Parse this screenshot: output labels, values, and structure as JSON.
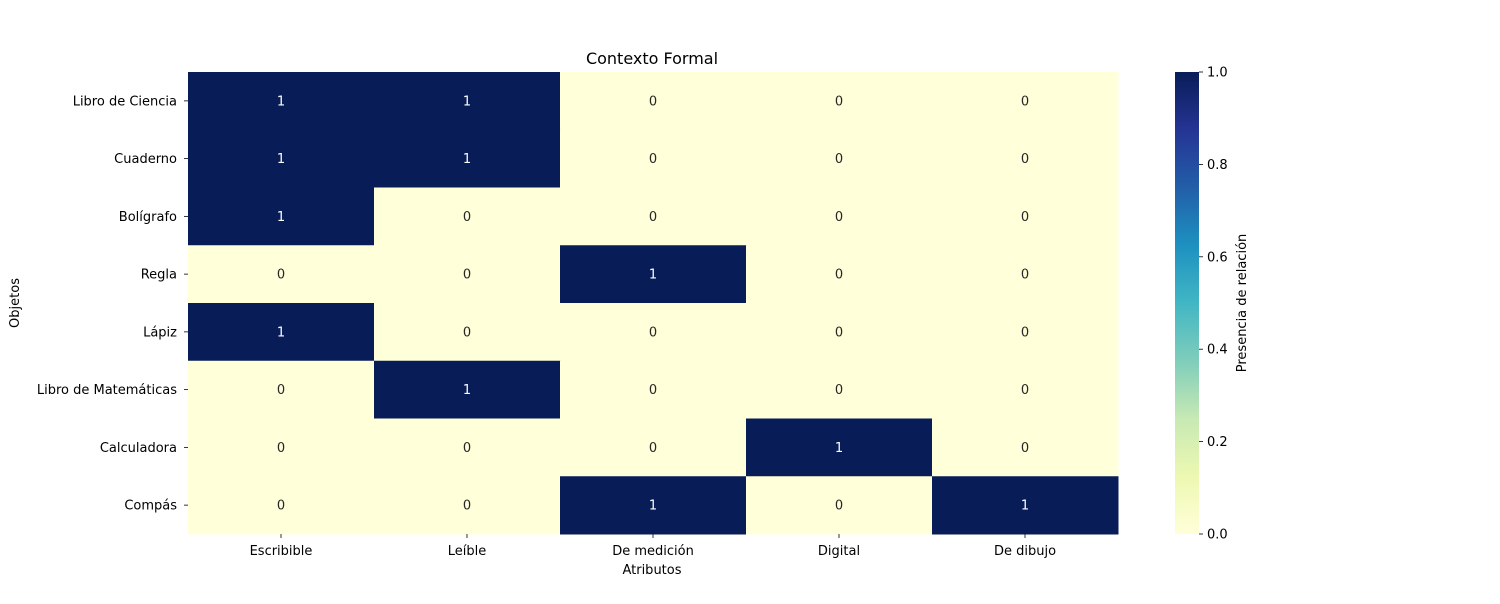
{
  "chart_data": {
    "type": "heatmap",
    "title": "Contexto Formal",
    "xlabel": "Atributos",
    "ylabel": "Objetos",
    "x_categories": [
      "Escribible",
      "Leíble",
      "De medición",
      "Digital",
      "De dibujo"
    ],
    "y_categories": [
      "Libro de Ciencia",
      "Cuaderno",
      "Bolígrafo",
      "Regla",
      "Lápiz",
      "Libro de Matemáticas",
      "Calculadora",
      "Compás"
    ],
    "values": [
      [
        1,
        1,
        0,
        0,
        0
      ],
      [
        1,
        1,
        0,
        0,
        0
      ],
      [
        1,
        0,
        0,
        0,
        0
      ],
      [
        0,
        0,
        1,
        0,
        0
      ],
      [
        1,
        0,
        0,
        0,
        0
      ],
      [
        0,
        1,
        0,
        0,
        0
      ],
      [
        0,
        0,
        0,
        1,
        0
      ],
      [
        0,
        0,
        1,
        0,
        1
      ]
    ],
    "annotations": true,
    "colormap": "YlGnBu",
    "colorbar": {
      "label": "Presencia de relación",
      "range": [
        0,
        1
      ],
      "ticks": [
        0,
        0.2,
        0.4,
        0.6,
        0.8,
        1
      ],
      "tick_labels": [
        "0.0",
        "0.2",
        "0.4",
        "0.6",
        "0.8",
        "1.0"
      ]
    },
    "colors": {
      "low": "#ffffd9",
      "high": "#081d58",
      "text_on_low": "#262626",
      "text_on_high": "#ffffff"
    }
  }
}
